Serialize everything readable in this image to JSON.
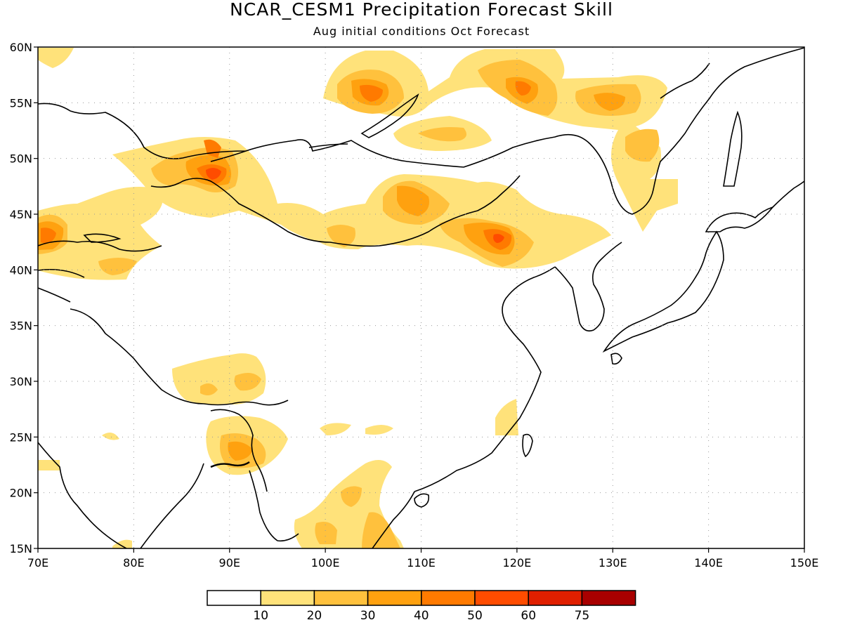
{
  "title": "NCAR_CESM1 Precipitation Forecast Skill",
  "subtitle": "Aug initial conditions  Oct Forecast",
  "map": {
    "lon_range": [
      70,
      150
    ],
    "lat_range": [
      15,
      60
    ],
    "lon_ticks": [
      70,
      80,
      90,
      100,
      110,
      120,
      130,
      140,
      150
    ],
    "lon_labels": [
      "70E",
      "80E",
      "90E",
      "100E",
      "110E",
      "120E",
      "130E",
      "140E",
      "150E"
    ],
    "lat_ticks": [
      15,
      20,
      25,
      30,
      35,
      40,
      45,
      50,
      55,
      60
    ],
    "lat_labels": [
      "15N",
      "20N",
      "25N",
      "30N",
      "35N",
      "40N",
      "45N",
      "50N",
      "55N",
      "60N"
    ],
    "grid": "dotted"
  },
  "legend": {
    "labels": [
      "10",
      "20",
      "30",
      "40",
      "50",
      "60",
      "75"
    ],
    "colors": [
      "#ffffff",
      "#ffe27a",
      "#ffc13d",
      "#ffa10f",
      "#ff7a00",
      "#ff4c00",
      "#e01f00",
      "#a80000"
    ]
  },
  "skill_regions": [
    {
      "lon": 104,
      "lat": 55.6,
      "rx": 5,
      "ry": 2.5,
      "level": 3
    },
    {
      "lon": 120,
      "lat": 56.5,
      "rx": 5,
      "ry": 2.5,
      "level": 3
    },
    {
      "lon": 121,
      "lat": 56.5,
      "rx": 1.5,
      "ry": 0.8,
      "level": 4
    },
    {
      "lon": 131,
      "lat": 55.3,
      "rx": 5,
      "ry": 2,
      "level": 2
    },
    {
      "lon": 112,
      "lat": 51.8,
      "rx": 4,
      "ry": 1.5,
      "level": 2
    },
    {
      "lon": 133,
      "lat": 50.8,
      "rx": 2.5,
      "ry": 2,
      "level": 2
    },
    {
      "lon": 87,
      "lat": 47.8,
      "rx": 5,
      "ry": 2.2,
      "level": 3
    },
    {
      "lon": 88,
      "lat": 48,
      "rx": 2,
      "ry": 1.2,
      "level": 4
    },
    {
      "lon": 111,
      "lat": 45.5,
      "rx": 4,
      "ry": 2,
      "level": 2
    },
    {
      "lon": 118,
      "lat": 42.7,
      "rx": 4,
      "ry": 1.8,
      "level": 3
    },
    {
      "lon": 118.5,
      "lat": 42.6,
      "rx": 1.5,
      "ry": 0.8,
      "level": 4
    },
    {
      "lon": 101,
      "lat": 42.8,
      "rx": 2.5,
      "ry": 1.2,
      "level": 2
    },
    {
      "lon": 72,
      "lat": 43,
      "rx": 2.5,
      "ry": 2.3,
      "level": 3
    },
    {
      "lon": 79,
      "lat": 40.5,
      "rx": 2.5,
      "ry": 1,
      "level": 2
    },
    {
      "lon": 91,
      "lat": 30,
      "rx": 2.5,
      "ry": 1.5,
      "level": 2
    },
    {
      "lon": 93,
      "lat": 24,
      "rx": 2.5,
      "ry": 1.5,
      "level": 2
    },
    {
      "lon": 105,
      "lat": 16,
      "rx": 1.5,
      "ry": 1.2,
      "level": 2
    }
  ]
}
